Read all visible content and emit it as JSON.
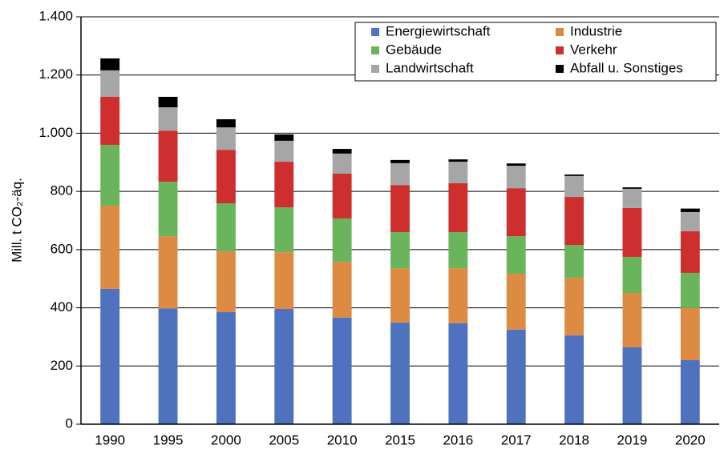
{
  "chart_data": {
    "type": "stacked_bar",
    "y_label": "Mill. t CO₂-äq.",
    "categories": [
      "1990",
      "1995",
      "2000",
      "2005",
      "2010",
      "2015",
      "2016",
      "2017",
      "2018",
      "2019",
      "2020"
    ],
    "series": [
      {
        "name": "Energiewirtschaft",
        "color": "#4f72be",
        "values": [
          465,
          398,
          385,
          396,
          366,
          349,
          347,
          325,
          305,
          264,
          220
        ]
      },
      {
        "name": "Industrie",
        "color": "#dd8a43",
        "values": [
          286,
          248,
          209,
          195,
          192,
          187,
          189,
          192,
          198,
          187,
          179
        ]
      },
      {
        "name": "Gebäude",
        "color": "#6ab55b",
        "values": [
          209,
          187,
          165,
          154,
          149,
          124,
          124,
          129,
          113,
          124,
          121
        ]
      },
      {
        "name": "Verkehr",
        "color": "#cd2f2f",
        "values": [
          165,
          176,
          184,
          157,
          154,
          162,
          168,
          165,
          165,
          168,
          143
        ]
      },
      {
        "name": "Landwirtschaft",
        "color": "#a6a6a6",
        "values": [
          91,
          80,
          77,
          72,
          69,
          75,
          74,
          77,
          72,
          66,
          66
        ]
      },
      {
        "name": "Abfall u. Sonstiges",
        "color": "#000000",
        "values": [
          41,
          36,
          28,
          22,
          16,
          11,
          8,
          8,
          5,
          5,
          12
        ]
      }
    ],
    "ylim": [
      0,
      1400
    ],
    "yticks": [
      0,
      200,
      400,
      600,
      800,
      {
        "value": 1000,
        "label": "1.000"
      },
      {
        "value": 1200,
        "label": "1.200"
      },
      {
        "value": 1400,
        "label": "1.400"
      }
    ],
    "grid": true
  }
}
